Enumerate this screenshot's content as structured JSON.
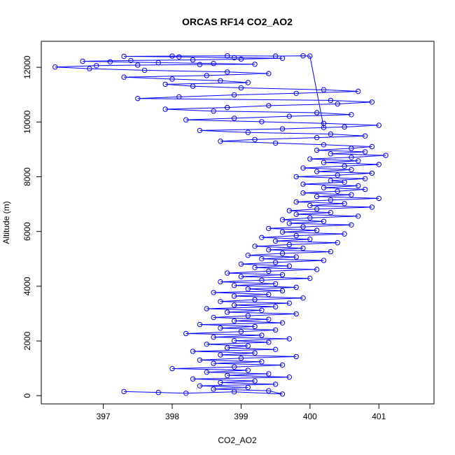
{
  "chart_data": {
    "type": "scatter",
    "title": "ORCAS RF14 CO2_AO2",
    "xlabel": "CO2_AO2",
    "ylabel": "Altitude (m)",
    "xlim": [
      396.1,
      401.8
    ],
    "ylim": [
      -300,
      12950
    ],
    "x_ticks": [
      397,
      398,
      399,
      400,
      401
    ],
    "x_tick_labels": [
      "397",
      "398",
      "399",
      "400",
      "401"
    ],
    "y_ticks": [
      0,
      2000,
      4000,
      6000,
      8000,
      10000,
      12000
    ],
    "y_tick_labels": [
      "0",
      "2000",
      "4000",
      "6000",
      "8000",
      "10000",
      "12000"
    ],
    "series": [
      {
        "marker": "open-circle",
        "line": true,
        "color": "#0000ff",
        "points": [
          [
            397.3,
            150
          ],
          [
            397.8,
            120
          ],
          [
            398.2,
            90
          ],
          [
            398.9,
            140
          ],
          [
            399.6,
            60
          ],
          [
            399.4,
            180
          ],
          [
            398.6,
            240
          ],
          [
            399.1,
            300
          ],
          [
            398.4,
            360
          ],
          [
            399.5,
            420
          ],
          [
            398.7,
            480
          ],
          [
            399.2,
            540
          ],
          [
            398.3,
            610
          ],
          [
            399.7,
            680
          ],
          [
            398.8,
            740
          ],
          [
            399.4,
            800
          ],
          [
            398.5,
            860
          ],
          [
            399.1,
            930
          ],
          [
            398.0,
            990
          ],
          [
            398.9,
            1050
          ],
          [
            399.6,
            1120
          ],
          [
            398.6,
            1180
          ],
          [
            399.3,
            1240
          ],
          [
            398.4,
            1300
          ],
          [
            399.0,
            1370
          ],
          [
            399.8,
            1430
          ],
          [
            398.7,
            1490
          ],
          [
            399.2,
            1560
          ],
          [
            398.3,
            1620
          ],
          [
            399.5,
            1690
          ],
          [
            398.8,
            1750
          ],
          [
            399.1,
            1820
          ],
          [
            398.5,
            1880
          ],
          [
            399.4,
            1950
          ],
          [
            398.9,
            2010
          ],
          [
            399.7,
            2080
          ],
          [
            398.6,
            2140
          ],
          [
            399.3,
            2210
          ],
          [
            398.2,
            2270
          ],
          [
            399.0,
            2340
          ],
          [
            399.5,
            2400
          ],
          [
            398.7,
            2470
          ],
          [
            399.2,
            2530
          ],
          [
            398.4,
            2600
          ],
          [
            399.6,
            2660
          ],
          [
            398.9,
            2730
          ],
          [
            399.4,
            2790
          ],
          [
            398.6,
            2860
          ],
          [
            399.1,
            2920
          ],
          [
            399.8,
            2990
          ],
          [
            398.8,
            3050
          ],
          [
            399.3,
            3120
          ],
          [
            398.5,
            3180
          ],
          [
            399.5,
            3250
          ],
          [
            398.9,
            3310
          ],
          [
            399.7,
            3380
          ],
          [
            398.7,
            3440
          ],
          [
            399.2,
            3510
          ],
          [
            399.9,
            3570
          ],
          [
            398.9,
            3640
          ],
          [
            399.4,
            3700
          ],
          [
            398.6,
            3770
          ],
          [
            399.6,
            3830
          ],
          [
            399.1,
            3900
          ],
          [
            399.8,
            3960
          ],
          [
            398.9,
            4030
          ],
          [
            399.5,
            4090
          ],
          [
            398.7,
            4160
          ],
          [
            399.3,
            4220
          ],
          [
            400.0,
            4290
          ],
          [
            399.0,
            4350
          ],
          [
            399.6,
            4420
          ],
          [
            398.8,
            4480
          ],
          [
            399.4,
            4550
          ],
          [
            400.1,
            4610
          ],
          [
            399.2,
            4680
          ],
          [
            399.7,
            4740
          ],
          [
            399.0,
            4810
          ],
          [
            399.5,
            4870
          ],
          [
            400.2,
            4940
          ],
          [
            399.3,
            5000
          ],
          [
            399.8,
            5070
          ],
          [
            399.1,
            5130
          ],
          [
            399.6,
            5200
          ],
          [
            400.3,
            5260
          ],
          [
            399.4,
            5330
          ],
          [
            399.9,
            5390
          ],
          [
            399.2,
            5460
          ],
          [
            399.7,
            5520
          ],
          [
            400.4,
            5590
          ],
          [
            399.5,
            5650
          ],
          [
            400.0,
            5720
          ],
          [
            399.3,
            5780
          ],
          [
            399.8,
            5850
          ],
          [
            400.5,
            5910
          ],
          [
            399.6,
            5980
          ],
          [
            400.1,
            6040
          ],
          [
            399.4,
            6110
          ],
          [
            399.9,
            6170
          ],
          [
            400.6,
            6240
          ],
          [
            399.7,
            6300
          ],
          [
            400.2,
            6370
          ],
          [
            399.6,
            6430
          ],
          [
            400.0,
            6500
          ],
          [
            400.7,
            6560
          ],
          [
            399.8,
            6630
          ],
          [
            400.3,
            6690
          ],
          [
            399.7,
            6760
          ],
          [
            400.1,
            6820
          ],
          [
            400.9,
            6890
          ],
          [
            400.0,
            6950
          ],
          [
            400.5,
            7020
          ],
          [
            399.8,
            7080
          ],
          [
            400.3,
            7150
          ],
          [
            401.0,
            7210
          ],
          [
            400.1,
            7280
          ],
          [
            400.6,
            7340
          ],
          [
            399.9,
            7410
          ],
          [
            400.4,
            7470
          ],
          [
            400.8,
            7540
          ],
          [
            400.2,
            7600
          ],
          [
            400.7,
            7670
          ],
          [
            399.9,
            7730
          ],
          [
            400.5,
            7800
          ],
          [
            400.3,
            7860
          ],
          [
            400.8,
            7930
          ],
          [
            399.8,
            8000
          ],
          [
            400.4,
            8060
          ],
          [
            400.9,
            8130
          ],
          [
            400.1,
            8190
          ],
          [
            400.6,
            8260
          ],
          [
            399.9,
            8320
          ],
          [
            400.5,
            8390
          ],
          [
            401.0,
            8450
          ],
          [
            400.2,
            8520
          ],
          [
            400.7,
            8580
          ],
          [
            400.0,
            8650
          ],
          [
            400.6,
            8710
          ],
          [
            401.1,
            8780
          ],
          [
            400.3,
            8840
          ],
          [
            400.8,
            8910
          ],
          [
            400.1,
            8970
          ],
          [
            400.6,
            9040
          ],
          [
            400.9,
            9100
          ],
          [
            400.2,
            9170
          ],
          [
            399.5,
            9230
          ],
          [
            398.7,
            9300
          ],
          [
            399.2,
            9360
          ],
          [
            400.1,
            9430
          ],
          [
            400.8,
            9490
          ],
          [
            400.3,
            9560
          ],
          [
            399.1,
            9620
          ],
          [
            398.4,
            9690
          ],
          [
            399.6,
            9750
          ],
          [
            400.5,
            9820
          ],
          [
            401.0,
            9880
          ],
          [
            400.2,
            9950
          ],
          [
            399.3,
            10010
          ],
          [
            398.2,
            10080
          ],
          [
            398.9,
            10140
          ],
          [
            399.7,
            10210
          ],
          [
            400.6,
            10270
          ],
          [
            400.1,
            10340
          ],
          [
            398.6,
            10400
          ],
          [
            397.9,
            10470
          ],
          [
            398.8,
            10530
          ],
          [
            399.4,
            10600
          ],
          [
            400.4,
            10660
          ],
          [
            400.9,
            10730
          ],
          [
            400.3,
            10790
          ],
          [
            397.5,
            10860
          ],
          [
            398.1,
            10920
          ],
          [
            398.9,
            10990
          ],
          [
            399.8,
            11050
          ],
          [
            400.7,
            11120
          ],
          [
            400.2,
            11180
          ],
          [
            399.0,
            11250
          ],
          [
            398.3,
            11310
          ],
          [
            397.9,
            11380
          ],
          [
            399.1,
            11440
          ],
          [
            398.7,
            11510
          ],
          [
            398.0,
            11570
          ],
          [
            397.3,
            11640
          ],
          [
            398.5,
            11700
          ],
          [
            399.4,
            11770
          ],
          [
            398.8,
            11830
          ],
          [
            397.6,
            11890
          ],
          [
            396.8,
            11950
          ],
          [
            396.3,
            12010
          ],
          [
            396.9,
            12060
          ],
          [
            397.5,
            12080
          ],
          [
            398.4,
            12100
          ],
          [
            399.2,
            12110
          ],
          [
            398.6,
            12140
          ],
          [
            397.8,
            12170
          ],
          [
            397.1,
            12200
          ],
          [
            396.7,
            12220
          ],
          [
            397.4,
            12250
          ],
          [
            398.3,
            12270
          ],
          [
            399.0,
            12300
          ],
          [
            399.6,
            12330
          ],
          [
            398.9,
            12350
          ],
          [
            398.1,
            12380
          ],
          [
            397.3,
            12400
          ],
          [
            398.0,
            12410
          ],
          [
            398.8,
            12420
          ],
          [
            399.5,
            12410
          ],
          [
            399.9,
            12420
          ],
          [
            400.0,
            12410
          ],
          [
            400.2,
            9800
          ]
        ]
      }
    ]
  }
}
